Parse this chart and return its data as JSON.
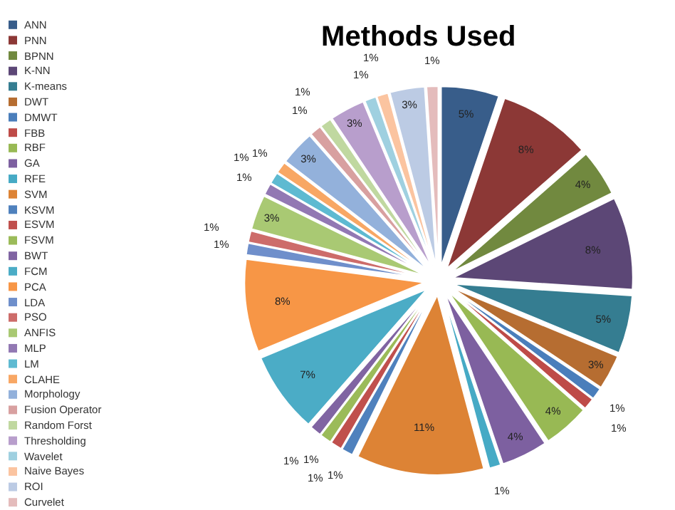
{
  "chart_data": {
    "type": "pie",
    "title": "Methods Used",
    "categories": [
      "ANN",
      "PNN",
      "BPNN",
      "K-NN",
      "K-means",
      "DWT",
      "DMWT",
      "FBB",
      "RBF",
      "GA",
      "RFE",
      "SVM",
      "KSVM",
      "ESVM",
      "FSVM",
      "BWT",
      "FCM",
      "PCA",
      "LDA",
      "PSO",
      "ANFIS",
      "MLP",
      "LM",
      "CLAHE",
      "Morphology",
      "Fusion Operator",
      "Random Forst",
      "Thresholding",
      "Wavelet",
      "Naive Bayes",
      "ROI",
      "Curvelet"
    ],
    "values": [
      5,
      8,
      4,
      8,
      5,
      3,
      1,
      1,
      4,
      4,
      1,
      11,
      1,
      1,
      1,
      1,
      7,
      8,
      1,
      1,
      3,
      1,
      1,
      1,
      3,
      1,
      1,
      3,
      1,
      1,
      3,
      1
    ],
    "value_labels": [
      "5%",
      "8%",
      "4%",
      "8%",
      "5%",
      "3%",
      "1%",
      "1%",
      "4%",
      "4%",
      "1%",
      "11%",
      "1%",
      "1%",
      "1%",
      "1%",
      "7%",
      "8%",
      "1%",
      "1%",
      "3%",
      "1%",
      "1%",
      "1%",
      "3%",
      "1%",
      "1%",
      "3%",
      "1%",
      "1%",
      "3%",
      "1%"
    ],
    "colors": [
      "#385d8a",
      "#8c3836",
      "#71893f",
      "#5c4776",
      "#357d91",
      "#b66d31",
      "#4a7ebb",
      "#be4b48",
      "#98b954",
      "#7d60a0",
      "#46aac5",
      "#dd8335",
      "#4f81bd",
      "#c0504d",
      "#9bbb59",
      "#8064a2",
      "#4bacc6",
      "#f79646",
      "#6f8fcb",
      "#cd6c6a",
      "#a9c973",
      "#9278b3",
      "#5ebad1",
      "#f8a764",
      "#93b1db",
      "#d8a0a0",
      "#c0d8a0",
      "#b89ecc",
      "#9fd0e0",
      "#fbc4a0",
      "#bccbe4",
      "#e4bcbc"
    ],
    "legend": "left"
  }
}
